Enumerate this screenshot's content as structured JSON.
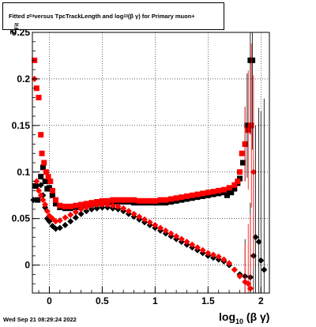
{
  "chart_data": {
    "type": "scatter",
    "title": {
      "prefix": "Fitted  z",
      "prefix_sub": "Fit",
      "middle": "  versus TpcTrackLength and log",
      "middle_sub": "10",
      "suffix": " (β  γ) for Primary muon+"
    },
    "xlabel": {
      "main": "log",
      "sub": "10",
      "tail": " (β γ)"
    },
    "ylabel": {
      "main": "z",
      "sub": "Fit"
    },
    "footer": "Wed Sep 21 08:29:24 2022",
    "xlim": [
      -0.16,
      2.08
    ],
    "ylim": [
      -0.03,
      0.25
    ],
    "x_ticks": [
      {
        "value": 0,
        "label": "0"
      },
      {
        "value": 0.5,
        "label": "0.5"
      },
      {
        "value": 1,
        "label": "1"
      },
      {
        "value": 1.5,
        "label": "1.5"
      },
      {
        "value": 2,
        "label": "2"
      }
    ],
    "y_ticks": [
      {
        "value": 0,
        "label": "0"
      },
      {
        "value": 0.05,
        "label": "0.05"
      },
      {
        "value": 0.1,
        "label": "0.1"
      },
      {
        "value": 0.15,
        "label": "0.15"
      },
      {
        "value": 0.2,
        "label": "0.2"
      },
      {
        "value": 0.25,
        "label": "0.25"
      }
    ],
    "grid": true,
    "series": [
      {
        "marker": "square",
        "color": "#000000",
        "points": [
          [
            -0.13,
            0.085
          ],
          [
            -0.11,
            0.07
          ],
          [
            -0.08,
            0.095
          ],
          [
            -0.06,
            0.105
          ],
          [
            -0.04,
            0.09
          ],
          [
            -0.02,
            0.082
          ],
          [
            0.0,
            0.083
          ],
          [
            0.03,
            0.075
          ],
          [
            0.06,
            0.066
          ],
          [
            0.1,
            0.062
          ],
          [
            0.15,
            0.061
          ],
          [
            0.2,
            0.061
          ],
          [
            0.25,
            0.062
          ],
          [
            0.3,
            0.063
          ],
          [
            0.35,
            0.064
          ],
          [
            0.4,
            0.065
          ],
          [
            0.45,
            0.066
          ],
          [
            0.5,
            0.067
          ],
          [
            0.55,
            0.067
          ],
          [
            0.6,
            0.068
          ],
          [
            0.65,
            0.068
          ],
          [
            0.7,
            0.068
          ],
          [
            0.75,
            0.068
          ],
          [
            0.8,
            0.067
          ],
          [
            0.85,
            0.067
          ],
          [
            0.9,
            0.067
          ],
          [
            0.95,
            0.067
          ],
          [
            1.0,
            0.067
          ],
          [
            1.05,
            0.067
          ],
          [
            1.1,
            0.067
          ],
          [
            1.15,
            0.068
          ],
          [
            1.2,
            0.069
          ],
          [
            1.25,
            0.07
          ],
          [
            1.3,
            0.071
          ],
          [
            1.35,
            0.072
          ],
          [
            1.4,
            0.073
          ],
          [
            1.45,
            0.074
          ],
          [
            1.5,
            0.075
          ],
          [
            1.55,
            0.076
          ],
          [
            1.6,
            0.077
          ],
          [
            1.65,
            0.078
          ],
          [
            1.68,
            0.075
          ],
          [
            1.7,
            0.08
          ],
          [
            1.72,
            0.078
          ],
          [
            1.75,
            0.082
          ],
          [
            1.78,
            0.088
          ],
          [
            1.8,
            0.093
          ],
          [
            1.83,
            0.11
          ],
          [
            1.85,
            0.13
          ],
          [
            1.87,
            0.15
          ],
          [
            1.9,
            0.22
          ],
          [
            1.92,
            0.22
          ]
        ]
      },
      {
        "marker": "square",
        "color": "#ff0000",
        "points": [
          [
            -0.14,
            0.22
          ],
          [
            -0.12,
            0.19
          ],
          [
            -0.1,
            0.18
          ],
          [
            -0.08,
            0.14
          ],
          [
            -0.07,
            0.12
          ],
          [
            -0.05,
            0.11
          ],
          [
            -0.03,
            0.1
          ],
          [
            -0.01,
            0.095
          ],
          [
            0.01,
            0.09
          ],
          [
            0.03,
            0.08
          ],
          [
            0.06,
            0.07
          ],
          [
            0.1,
            0.064
          ],
          [
            0.15,
            0.063
          ],
          [
            0.2,
            0.063
          ],
          [
            0.25,
            0.064
          ],
          [
            0.3,
            0.065
          ],
          [
            0.35,
            0.066
          ],
          [
            0.4,
            0.067
          ],
          [
            0.45,
            0.068
          ],
          [
            0.5,
            0.069
          ],
          [
            0.55,
            0.069
          ],
          [
            0.6,
            0.07
          ],
          [
            0.65,
            0.07
          ],
          [
            0.7,
            0.07
          ],
          [
            0.75,
            0.07
          ],
          [
            0.8,
            0.07
          ],
          [
            0.85,
            0.069
          ],
          [
            0.9,
            0.069
          ],
          [
            0.95,
            0.069
          ],
          [
            1.0,
            0.069
          ],
          [
            1.05,
            0.07
          ],
          [
            1.1,
            0.07
          ],
          [
            1.15,
            0.071
          ],
          [
            1.2,
            0.072
          ],
          [
            1.25,
            0.073
          ],
          [
            1.3,
            0.074
          ],
          [
            1.35,
            0.075
          ],
          [
            1.4,
            0.076
          ],
          [
            1.45,
            0.077
          ],
          [
            1.5,
            0.078
          ],
          [
            1.55,
            0.079
          ],
          [
            1.6,
            0.08
          ],
          [
            1.65,
            0.081
          ],
          [
            1.7,
            0.083
          ],
          [
            1.75,
            0.086
          ],
          [
            1.78,
            0.09
          ],
          [
            1.8,
            0.1
          ],
          [
            1.82,
            0.12
          ],
          [
            1.85,
            0.13
          ],
          [
            1.88,
            0.145
          ],
          [
            1.91,
            0.15
          ]
        ]
      },
      {
        "marker": "diamond",
        "color": "#000000",
        "points": [
          [
            -0.15,
            0.07
          ],
          [
            -0.12,
            0.085
          ],
          [
            -0.08,
            0.086
          ],
          [
            -0.06,
            0.075
          ],
          [
            -0.04,
            0.062
          ],
          [
            -0.02,
            0.05
          ],
          [
            0.0,
            0.047
          ],
          [
            0.03,
            0.042
          ],
          [
            0.06,
            0.039
          ],
          [
            0.1,
            0.04
          ],
          [
            0.15,
            0.043
          ],
          [
            0.2,
            0.047
          ],
          [
            0.25,
            0.051
          ],
          [
            0.3,
            0.055
          ],
          [
            0.35,
            0.058
          ],
          [
            0.4,
            0.06
          ],
          [
            0.45,
            0.061
          ],
          [
            0.5,
            0.062
          ],
          [
            0.55,
            0.062
          ],
          [
            0.6,
            0.061
          ],
          [
            0.65,
            0.06
          ],
          [
            0.7,
            0.058
          ],
          [
            0.75,
            0.055
          ],
          [
            0.8,
            0.052
          ],
          [
            0.85,
            0.049
          ],
          [
            0.9,
            0.046
          ],
          [
            0.95,
            0.043
          ],
          [
            1.0,
            0.04
          ],
          [
            1.05,
            0.037
          ],
          [
            1.1,
            0.034
          ],
          [
            1.15,
            0.031
          ],
          [
            1.2,
            0.028
          ],
          [
            1.25,
            0.025
          ],
          [
            1.3,
            0.022
          ],
          [
            1.35,
            0.019
          ],
          [
            1.4,
            0.016
          ],
          [
            1.45,
            0.013
          ],
          [
            1.5,
            0.01
          ],
          [
            1.55,
            0.008
          ],
          [
            1.6,
            0.006
          ],
          [
            1.65,
            0.004
          ],
          [
            1.7,
            0.0
          ],
          [
            1.75,
            -0.005
          ],
          [
            1.8,
            -0.01
          ],
          [
            1.85,
            -0.012
          ],
          [
            1.9,
            -0.013
          ],
          [
            1.93,
            0.01
          ],
          [
            1.95,
            0.03
          ],
          [
            1.98,
            0.025
          ],
          [
            2.0,
            0.005
          ],
          [
            2.03,
            -0.005
          ]
        ]
      },
      {
        "marker": "diamond",
        "color": "#ff0000",
        "points": [
          [
            -0.14,
            0.2
          ],
          [
            -0.12,
            0.09
          ],
          [
            -0.1,
            0.08
          ],
          [
            -0.08,
            0.075
          ],
          [
            -0.06,
            0.07
          ],
          [
            -0.04,
            0.065
          ],
          [
            -0.02,
            0.058
          ],
          [
            0.0,
            0.053
          ],
          [
            0.03,
            0.05
          ],
          [
            0.06,
            0.047
          ],
          [
            0.1,
            0.048
          ],
          [
            0.15,
            0.051
          ],
          [
            0.2,
            0.054
          ],
          [
            0.25,
            0.057
          ],
          [
            0.3,
            0.06
          ],
          [
            0.35,
            0.062
          ],
          [
            0.4,
            0.064
          ],
          [
            0.45,
            0.065
          ],
          [
            0.5,
            0.065
          ],
          [
            0.55,
            0.065
          ],
          [
            0.6,
            0.064
          ],
          [
            0.65,
            0.063
          ],
          [
            0.7,
            0.061
          ],
          [
            0.75,
            0.058
          ],
          [
            0.8,
            0.055
          ],
          [
            0.85,
            0.052
          ],
          [
            0.9,
            0.049
          ],
          [
            0.95,
            0.046
          ],
          [
            1.0,
            0.043
          ],
          [
            1.05,
            0.04
          ],
          [
            1.1,
            0.037
          ],
          [
            1.15,
            0.034
          ],
          [
            1.2,
            0.031
          ],
          [
            1.25,
            0.028
          ],
          [
            1.3,
            0.025
          ],
          [
            1.35,
            0.022
          ],
          [
            1.4,
            0.019
          ],
          [
            1.45,
            0.016
          ],
          [
            1.5,
            0.013
          ],
          [
            1.55,
            0.011
          ],
          [
            1.6,
            0.009
          ],
          [
            1.65,
            0.006
          ],
          [
            1.7,
            0.002
          ],
          [
            1.75,
            -0.005
          ],
          [
            1.8,
            -0.012
          ],
          [
            1.85,
            -0.018
          ],
          [
            1.88,
            -0.02
          ],
          [
            1.9,
            -0.025
          ],
          [
            1.93,
            0.1
          ]
        ]
      }
    ]
  }
}
